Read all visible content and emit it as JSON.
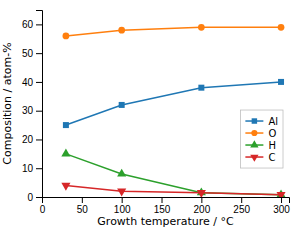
{
  "chart_data": {
    "type": "line",
    "x": [
      30,
      100,
      200,
      300
    ],
    "xlabel": "Growth temperature / °C",
    "ylabel": "Composition / atom-%",
    "xlim": [
      0,
      310
    ],
    "ylim": [
      0,
      65
    ],
    "xticks": [
      0,
      50,
      100,
      150,
      200,
      250,
      300
    ],
    "yticks": [
      0,
      10,
      20,
      30,
      40,
      50,
      60
    ],
    "grid": false,
    "legend": "right",
    "series": [
      {
        "name": "Al",
        "marker": "square",
        "values": [
          25,
          32,
          38,
          40
        ]
      },
      {
        "name": "O",
        "marker": "circle",
        "values": [
          56,
          58,
          59,
          59
        ]
      },
      {
        "name": "H",
        "marker": "triangle-up",
        "values": [
          15,
          8,
          1.5,
          0.8
        ]
      },
      {
        "name": "C",
        "marker": "triangle-down",
        "values": [
          4,
          2,
          1.5,
          0.8
        ]
      }
    ]
  }
}
